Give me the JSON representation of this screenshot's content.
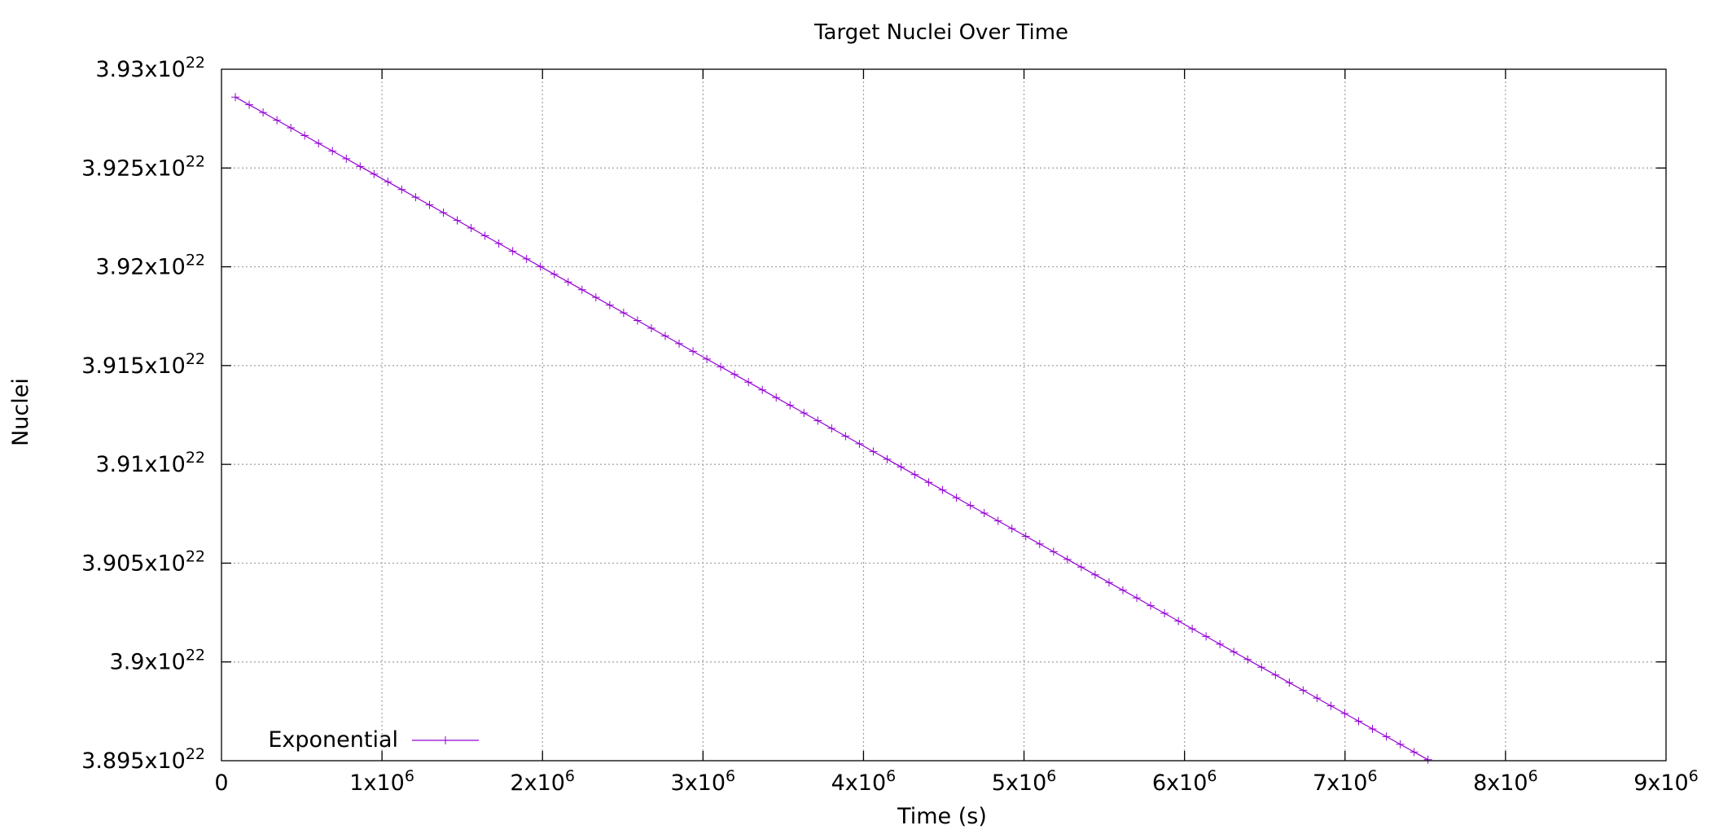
{
  "chart_data": {
    "type": "line",
    "title": "Target Nuclei Over Time",
    "xlabel": "Time (s)",
    "ylabel": "Nuclei",
    "xlim": [
      0,
      9000000
    ],
    "ylim": [
      3.895e+22,
      3.93e+22
    ],
    "x_ticks": [
      {
        "value": 0,
        "base": "0",
        "exp": ""
      },
      {
        "value": 1000000,
        "base": "1x10",
        "exp": "6"
      },
      {
        "value": 2000000,
        "base": "2x10",
        "exp": "6"
      },
      {
        "value": 3000000,
        "base": "3x10",
        "exp": "6"
      },
      {
        "value": 4000000,
        "base": "4x10",
        "exp": "6"
      },
      {
        "value": 5000000,
        "base": "5x10",
        "exp": "6"
      },
      {
        "value": 6000000,
        "base": "6x10",
        "exp": "6"
      },
      {
        "value": 7000000,
        "base": "7x10",
        "exp": "6"
      },
      {
        "value": 8000000,
        "base": "8x10",
        "exp": "6"
      },
      {
        "value": 9000000,
        "base": "9x10",
        "exp": "6"
      }
    ],
    "y_ticks": [
      {
        "value": 3.895e+22,
        "base": "3.895x10",
        "exp": "22"
      },
      {
        "value": 3.9e+22,
        "base": "3.9x10",
        "exp": "22"
      },
      {
        "value": 3.905e+22,
        "base": "3.905x10",
        "exp": "22"
      },
      {
        "value": 3.91e+22,
        "base": "3.91x10",
        "exp": "22"
      },
      {
        "value": 3.915e+22,
        "base": "3.915x10",
        "exp": "22"
      },
      {
        "value": 3.92e+22,
        "base": "3.92x10",
        "exp": "22"
      },
      {
        "value": 3.925e+22,
        "base": "3.925x10",
        "exp": "22"
      },
      {
        "value": 3.93e+22,
        "base": "3.93x10",
        "exp": "22"
      }
    ],
    "grid": true,
    "legend_position": "bottom-left",
    "series": [
      {
        "name": "Exponential",
        "color": "#9400d3",
        "marker": "plus",
        "x_start": 86400,
        "x_step": 86400,
        "y_start": 3.92859e+22,
        "y_step": -3.9e+18,
        "count": 100
      }
    ]
  }
}
